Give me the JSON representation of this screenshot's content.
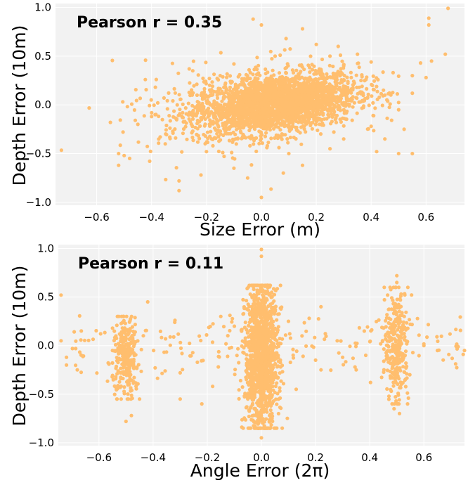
{
  "colors": {
    "panel_bg": "#f2f2f2",
    "grid": "#ffffff",
    "point": "#ffbe6e"
  },
  "chart_data": [
    {
      "type": "scatter",
      "title": "",
      "xlabel": "Size Error (m)",
      "ylabel": "Depth Error (10m)",
      "annotation": "Pearson r = 0.35",
      "xlim": [
        -0.75,
        0.74
      ],
      "ylim": [
        -1.03,
        1.04
      ],
      "xticks": [
        -0.6,
        -0.4,
        -0.2,
        0.0,
        0.2,
        0.4,
        0.6
      ],
      "xtick_labels": [
        "−0.6",
        "−0.4",
        "−0.2",
        "0.0",
        "0.2",
        "0.4",
        "0.6"
      ],
      "yticks": [
        -1.0,
        -0.5,
        0.0,
        0.5,
        1.0
      ],
      "ytick_labels": [
        "−1.0",
        "−0.5",
        "0.0",
        "0.5",
        "1.0"
      ],
      "grid": true,
      "points": [
        [
          0.68,
          0.99
        ],
        [
          0.61,
          0.89
        ],
        [
          0.61,
          0.82
        ],
        [
          0.67,
          0.52
        ],
        [
          0.62,
          0.45
        ],
        [
          0.58,
          0.43
        ],
        [
          -0.03,
          0.88
        ],
        [
          0.0,
          0.82
        ],
        [
          0.15,
          0.78
        ],
        [
          0.09,
          0.68
        ],
        [
          0.2,
          0.62
        ],
        [
          0.28,
          0.6
        ],
        [
          0.35,
          0.52
        ],
        [
          0.4,
          0.44
        ],
        [
          0.48,
          0.33
        ],
        [
          0.55,
          0.3
        ],
        [
          0.45,
          0.1
        ],
        [
          0.5,
          -0.05
        ],
        [
          0.4,
          -0.22
        ],
        [
          0.45,
          -0.35
        ],
        [
          0.5,
          -0.5
        ],
        [
          0.42,
          -0.48
        ],
        [
          0.55,
          -0.5
        ],
        [
          -0.55,
          -0.18
        ],
        [
          -0.52,
          -0.5
        ],
        [
          -0.5,
          -0.52
        ],
        [
          -0.48,
          -0.55
        ],
        [
          -0.52,
          -0.62
        ],
        [
          -0.45,
          -0.2
        ],
        [
          -0.4,
          -0.12
        ],
        [
          -0.3,
          -0.78
        ],
        [
          -0.3,
          -0.88
        ],
        [
          -0.22,
          -0.72
        ],
        [
          -0.1,
          -0.65
        ],
        [
          -0.05,
          -0.75
        ],
        [
          -0.2,
          -0.48
        ],
        [
          0.0,
          -0.95
        ],
        [
          0.08,
          -0.7
        ],
        [
          0.15,
          -0.62
        ],
        [
          0.1,
          -0.5
        ],
        [
          0.25,
          -0.45
        ],
        [
          0.3,
          -0.35
        ],
        [
          -0.35,
          -0.4
        ],
        [
          -0.25,
          0.35
        ],
        [
          -0.1,
          0.42
        ],
        [
          0.05,
          0.5
        ],
        [
          0.25,
          0.5
        ],
        [
          0.3,
          0.4
        ],
        [
          -0.15,
          0.3
        ],
        [
          0.55,
          0.12
        ],
        [
          0.6,
          0.28
        ],
        [
          0.52,
          -0.25
        ]
      ]
    },
    {
      "type": "scatter",
      "title": "",
      "xlabel": "Angle Error (2π)",
      "ylabel": "Depth Error (10m)",
      "annotation": "Pearson r = 0.11",
      "xlim": [
        -0.75,
        0.75
      ],
      "ylim": [
        -1.03,
        1.04
      ],
      "xticks": [
        -0.6,
        -0.4,
        -0.2,
        0.0,
        0.2,
        0.4,
        0.6
      ],
      "xtick_labels": [
        "−0.6",
        "−0.4",
        "−0.2",
        "0.0",
        "0.2",
        "0.4",
        "0.6"
      ],
      "yticks": [
        -1.0,
        -0.5,
        0.0,
        0.5,
        1.0
      ],
      "ytick_labels": [
        "−1.0",
        "−0.5",
        "0.0",
        "0.5",
        "1.0"
      ],
      "grid": true,
      "points": [
        [
          -0.74,
          0.52
        ],
        [
          -0.74,
          0.05
        ],
        [
          -0.72,
          -0.12
        ],
        [
          -0.72,
          -0.2
        ],
        [
          -0.68,
          -0.25
        ],
        [
          -0.55,
          0.18
        ],
        [
          -0.5,
          -0.78
        ],
        [
          -0.48,
          -0.72
        ],
        [
          -0.45,
          -0.55
        ],
        [
          -0.42,
          0.45
        ],
        [
          -0.55,
          -0.05
        ],
        [
          -0.3,
          -0.28
        ],
        [
          -0.3,
          -0.55
        ],
        [
          -0.22,
          -0.6
        ],
        [
          -0.18,
          -0.42
        ],
        [
          -0.15,
          0.3
        ],
        [
          -0.1,
          0.2
        ],
        [
          -0.05,
          -0.55
        ],
        [
          0.0,
          0.99
        ],
        [
          0.0,
          0.92
        ],
        [
          -0.01,
          -0.85
        ],
        [
          0.0,
          -0.95
        ],
        [
          0.03,
          -0.72
        ],
        [
          0.1,
          0.25
        ],
        [
          0.15,
          0.1
        ],
        [
          0.2,
          -0.15
        ],
        [
          0.22,
          0.4
        ],
        [
          0.22,
          -0.25
        ],
        [
          0.28,
          0.05
        ],
        [
          0.3,
          -0.12
        ],
        [
          0.35,
          -0.25
        ],
        [
          0.38,
          0.15
        ],
        [
          0.5,
          0.72
        ],
        [
          0.5,
          0.65
        ],
        [
          0.51,
          -0.7
        ],
        [
          0.49,
          -0.65
        ],
        [
          0.55,
          0.22
        ],
        [
          0.6,
          0.0
        ],
        [
          0.65,
          -0.05
        ],
        [
          0.75,
          -0.05
        ],
        [
          -0.05,
          -0.3
        ],
        [
          0.07,
          -0.15
        ]
      ],
      "clusters": [
        {
          "x_center": -0.5,
          "x_spread": 0.025,
          "y_min": -0.55,
          "y_max": 0.3,
          "count": 260
        },
        {
          "x_center": 0.0,
          "x_spread": 0.03,
          "y_min": -0.85,
          "y_max": 0.62,
          "count": 1300
        },
        {
          "x_center": 0.5,
          "x_spread": 0.022,
          "y_min": -0.6,
          "y_max": 0.6,
          "count": 300
        }
      ]
    }
  ]
}
